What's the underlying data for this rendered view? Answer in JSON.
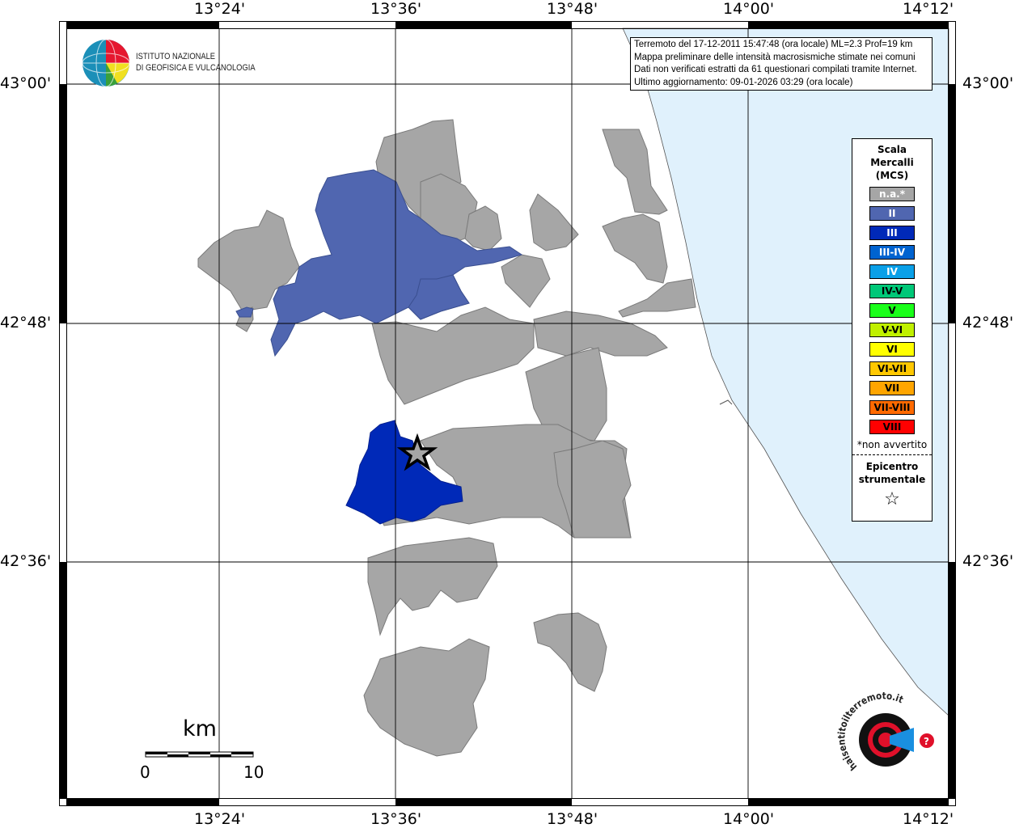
{
  "map": {
    "lon_labels": [
      "13°24'",
      "13°36'",
      "13°48'",
      "14°00'",
      "14°12'"
    ],
    "lat_labels": [
      "43°00'",
      "42°48'",
      "42°36'"
    ],
    "colors": {
      "not_felt": "#a6a6a6",
      "II": "#5066b0",
      "III": "#0029b8",
      "sea": "#e0f1fc"
    }
  },
  "info": {
    "lines": [
      "Terremoto del 17-12-2011 15:47:48 (ora locale) ML=2.3 Prof=19 km",
      "Mappa preliminare delle intensità macrosismiche stimate nei comuni",
      "Dati non verificati estratti da 61 questionari compilati tramite Internet.",
      "Ultimo aggiornamento: 09-01-2026 03:29 (ora locale)"
    ]
  },
  "legend": {
    "title_lines": [
      "Scala",
      "Mercalli",
      "(MCS)"
    ],
    "items": [
      {
        "label": "n.a.*",
        "color": "#a6a6a6",
        "text": "#ffffff"
      },
      {
        "label": "II",
        "color": "#5066b0",
        "text": "#ffffff"
      },
      {
        "label": "III",
        "color": "#0029b8",
        "text": "#ffffff"
      },
      {
        "label": "III-IV",
        "color": "#0063d0",
        "text": "#ffffff"
      },
      {
        "label": "IV",
        "color": "#0aa0e8",
        "text": "#ffffff"
      },
      {
        "label": "IV-V",
        "color": "#00c878",
        "text": "#000000"
      },
      {
        "label": "V",
        "color": "#1aff1a",
        "text": "#000000"
      },
      {
        "label": "V-VI",
        "color": "#c0f000",
        "text": "#000000"
      },
      {
        "label": "VI",
        "color": "#ffff00",
        "text": "#000000"
      },
      {
        "label": "VI-VII",
        "color": "#ffc800",
        "text": "#000000"
      },
      {
        "label": "VII",
        "color": "#ffa500",
        "text": "#000000"
      },
      {
        "label": "VII-VIII",
        "color": "#ff6a00",
        "text": "#000000"
      },
      {
        "label": "VIII",
        "color": "#ff0000",
        "text": "#000000"
      }
    ],
    "note": "*non avvertito",
    "epicenter_lines": [
      "Epicentro",
      "strumentale"
    ],
    "epicenter_symbol": "☆"
  },
  "logos": {
    "ingv": [
      "ISTITUTO NAZIONALE",
      "DI GEOFISICA E VULCANOLOGIA"
    ],
    "hst": "www.haisentitoilterremoto.it?"
  },
  "scale": {
    "unit": "km",
    "min": "0",
    "max": "10"
  }
}
